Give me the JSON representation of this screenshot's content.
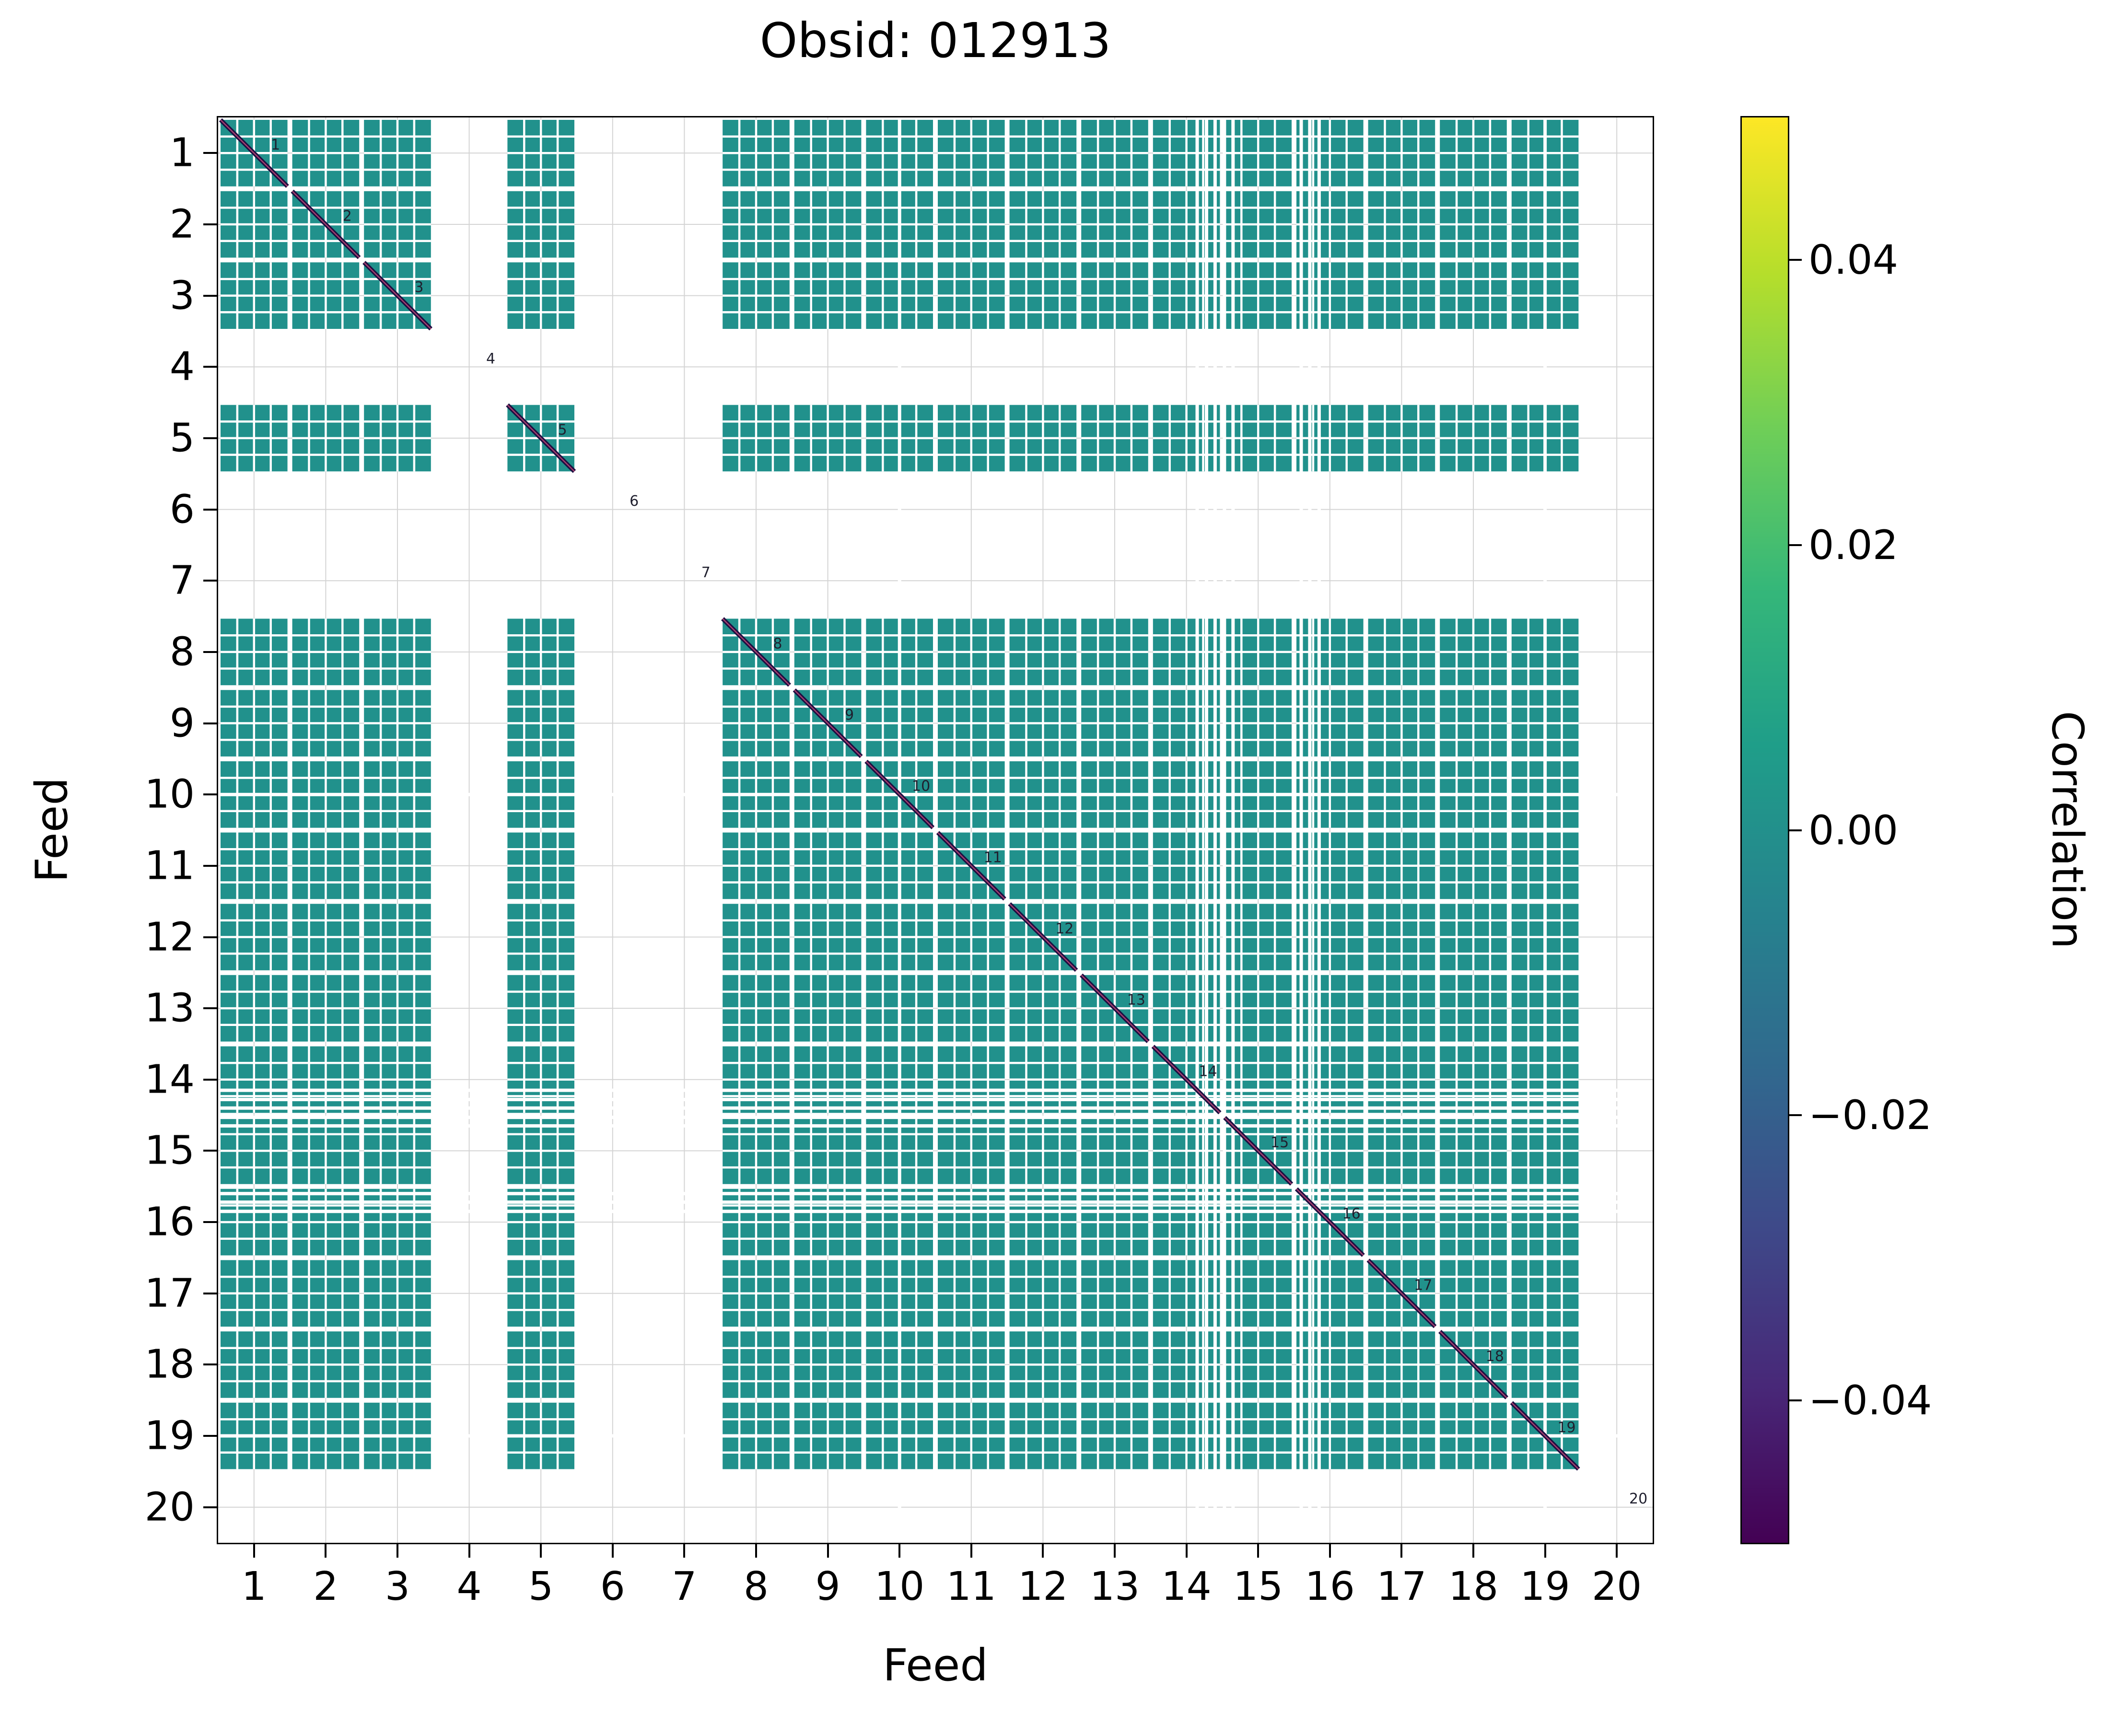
{
  "title": "Obsid: 012913",
  "axes": {
    "xlabel": "Feed",
    "ylabel": "Feed"
  },
  "colorbar": {
    "label": "Correlation",
    "colormap": "viridis",
    "vmin": -0.05,
    "vmax": 0.05,
    "ticks": [
      {
        "value": 0.04,
        "label": "0.04"
      },
      {
        "value": 0.02,
        "label": "0.02"
      },
      {
        "value": 0.0,
        "label": "0.00"
      },
      {
        "value": -0.02,
        "label": "−0.02"
      },
      {
        "value": -0.04,
        "label": "−0.04"
      }
    ]
  },
  "chart_data": {
    "type": "heatmap",
    "title": "Obsid: 012913",
    "xlabel": "Feed",
    "ylabel": "Feed",
    "feeds": [
      1,
      2,
      3,
      4,
      5,
      6,
      7,
      8,
      9,
      10,
      11,
      12,
      13,
      14,
      15,
      16,
      17,
      18,
      19,
      20
    ],
    "x_ticks": [
      1,
      2,
      3,
      4,
      5,
      6,
      7,
      8,
      9,
      10,
      11,
      12,
      13,
      14,
      15,
      16,
      17,
      18,
      19,
      20
    ],
    "y_ticks": [
      1,
      2,
      3,
      4,
      5,
      6,
      7,
      8,
      9,
      10,
      11,
      12,
      13,
      14,
      15,
      16,
      17,
      18,
      19,
      20
    ],
    "present_feeds": [
      1,
      2,
      3,
      5,
      8,
      9,
      10,
      11,
      12,
      13,
      14,
      15,
      16,
      17,
      18,
      19
    ],
    "missing_feeds": [
      4,
      6,
      7,
      20
    ],
    "diagonal_feed_labels": [
      1,
      2,
      3,
      4,
      5,
      6,
      7,
      8,
      9,
      10,
      11,
      12,
      13,
      14,
      15,
      16,
      17,
      18,
      19,
      20
    ],
    "cell_value": 0.0,
    "clim": [
      -0.05,
      0.05
    ],
    "colormap": "viridis",
    "subdivisions_per_feed": 4,
    "masked_channel_lines": [
      10.5,
      14.65,
      14.78,
      14.9,
      15.03,
      15.15,
      16.1,
      16.22,
      16.35,
      19.5
    ],
    "grid": true,
    "legend": "colorbar-right"
  },
  "colors": {
    "cell": "#21918c",
    "diagonal_line": "#1c1042",
    "diagonal_accent": "#a8406f",
    "gridline": "#d4d4d4",
    "annotation": "#1f1f2e",
    "background": "#ffffff"
  }
}
